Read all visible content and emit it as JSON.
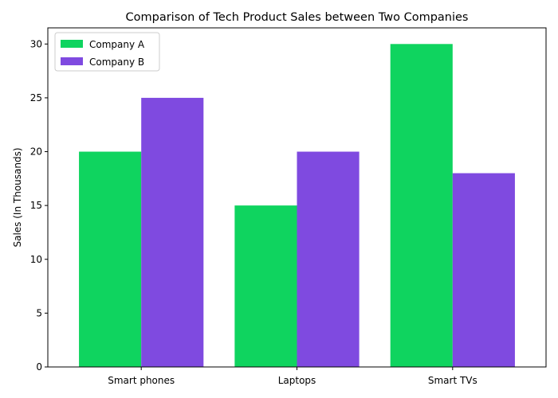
{
  "chart_data": {
    "type": "bar",
    "title": "Comparison of Tech Product Sales between Two Companies",
    "xlabel": "",
    "ylabel": "Sales (In Thousands)",
    "categories": [
      "Smart phones",
      "Laptops",
      "Smart TVs"
    ],
    "series": [
      {
        "name": "Company A",
        "values": [
          20,
          15,
          30
        ],
        "color": "#0fd45f"
      },
      {
        "name": "Company B",
        "values": [
          25,
          20,
          18
        ],
        "color": "#7f4ae0"
      }
    ],
    "ylim": [
      0,
      31.5
    ],
    "yticks": [
      0,
      5,
      10,
      15,
      20,
      25,
      30
    ],
    "grid": false,
    "legend_position": "top-left"
  }
}
